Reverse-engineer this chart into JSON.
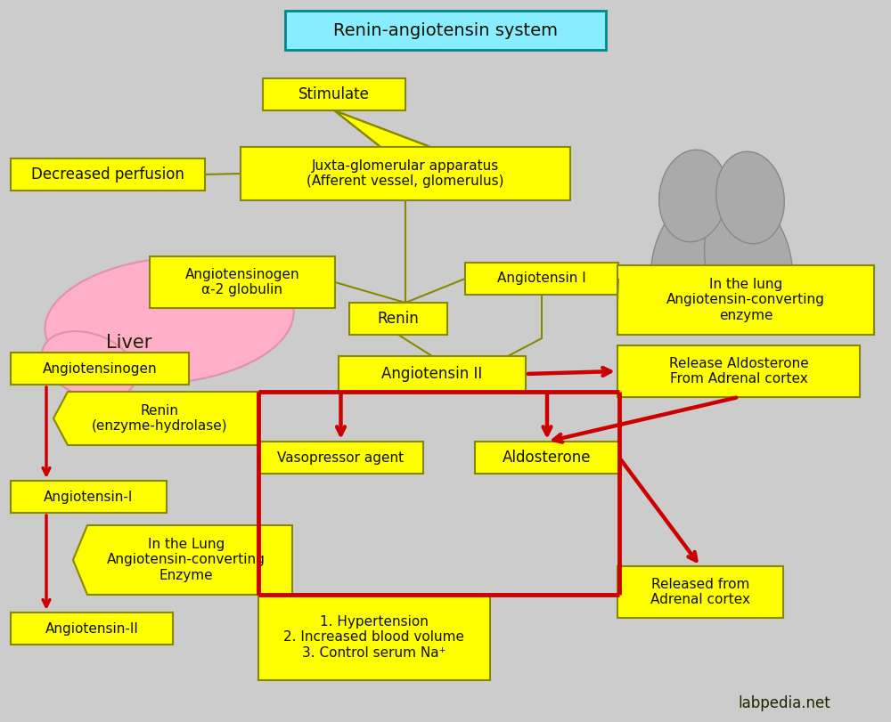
{
  "bg": "#cccccc",
  "yellow": "#ffff00",
  "red": "#cc0000",
  "olive": "#888800",
  "cyan": "#88eeff",
  "pink": "#ffb0c8",
  "gray_organ": "#aaaaaa",
  "dark": "#111100",
  "watermark": "labpedia.net",
  "title": [
    320,
    12,
    360,
    44
  ],
  "stimulate": [
    295,
    88,
    160,
    36
  ],
  "dec_perf": [
    12,
    178,
    218,
    36
  ],
  "juxta": [
    270,
    165,
    370,
    60
  ],
  "angio_glob": [
    168,
    288,
    208,
    58
  ],
  "angio_I": [
    522,
    295,
    172,
    36
  ],
  "renin_c": [
    392,
    340,
    110,
    36
  ],
  "lung_r": [
    693,
    298,
    288,
    78
  ],
  "angio_II": [
    380,
    400,
    210,
    40
  ],
  "rel_aldo": [
    693,
    388,
    272,
    58
  ],
  "angioG_l": [
    12,
    396,
    200,
    36
  ],
  "renin_l": [
    60,
    440,
    230,
    60
  ],
  "vaso": [
    290,
    496,
    185,
    36
  ],
  "aldo": [
    533,
    496,
    162,
    36
  ],
  "angioI_l": [
    12,
    540,
    175,
    36
  ],
  "lung_l": [
    82,
    590,
    246,
    78
  ],
  "angioII_l": [
    12,
    688,
    182,
    36
  ],
  "outcomes": [
    290,
    668,
    260,
    96
  ],
  "rel_adren": [
    693,
    636,
    186,
    58
  ]
}
